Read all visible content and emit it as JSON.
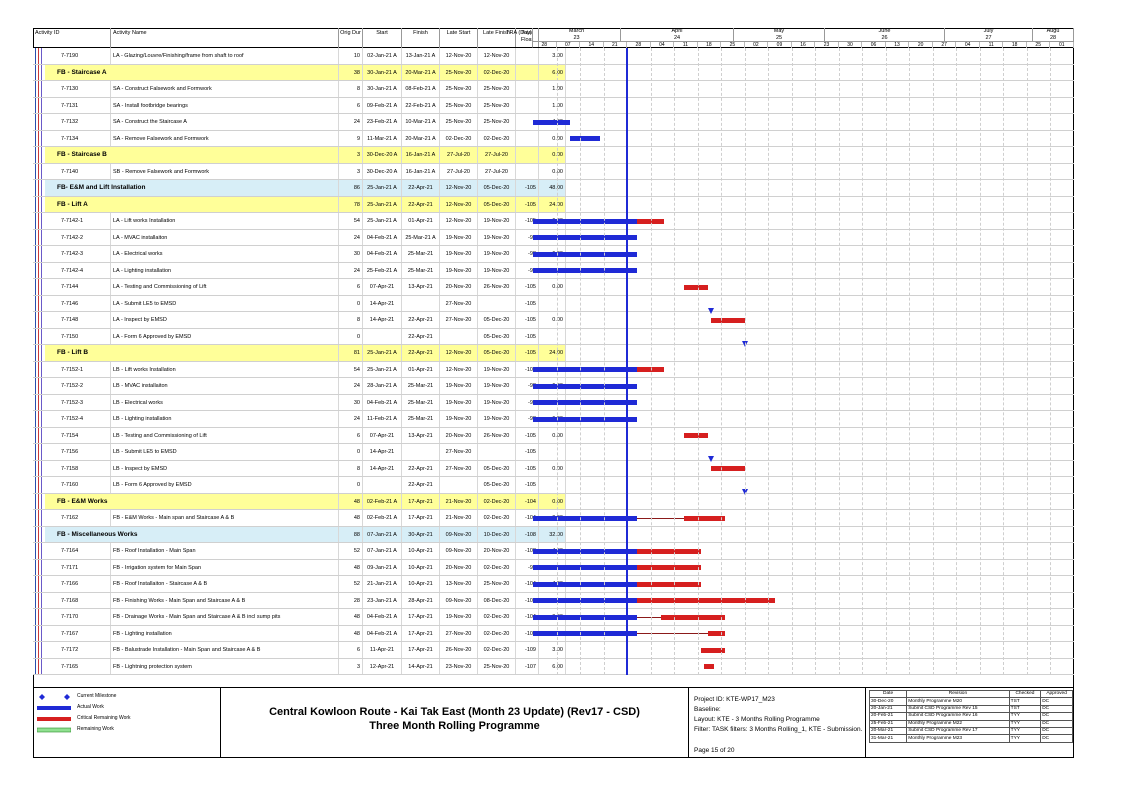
{
  "colors": {
    "wbs_yellow": "#ffff99",
    "wbs_blue": "#d7eef7",
    "actual_work": "#1f2ad6",
    "critical_remaining": "#d61f1f",
    "remaining_work": "#90e090",
    "milestone": "#1f2ad6",
    "data_date_line": "#1f2ad6"
  },
  "columns": {
    "activity_id": "Activity ID",
    "activity_name": "Activity Name",
    "orig_dur": "Orig Dur",
    "start": "Start",
    "finish": "Finish",
    "late_start": "Late Start",
    "late_finish": "Late Finish",
    "total_float": "Total Float",
    "tra": "TRA (Day)"
  },
  "timescale": {
    "months": [
      {
        "name": "March",
        "sub": "23"
      },
      {
        "name": "April",
        "sub": "24"
      },
      {
        "name": "May",
        "sub": "25"
      },
      {
        "name": "June",
        "sub": "26"
      },
      {
        "name": "July",
        "sub": "27"
      },
      {
        "name": "Augu",
        "sub": "28"
      }
    ],
    "weeks": [
      "28",
      "07",
      "14",
      "21",
      "28",
      "04",
      "11",
      "18",
      "25",
      "02",
      "09",
      "16",
      "23",
      "30",
      "06",
      "13",
      "20",
      "27",
      "04",
      "11",
      "18",
      "25",
      "01"
    ]
  },
  "rows": [
    {
      "type": "task",
      "id": "7-7190",
      "name": "LA - Glazing/Louvre/Finishing/frame from shaft to roof",
      "dur": "10",
      "start": "02-Jan-21 A",
      "finish": "13-Jan-21 A",
      "ls": "12-Nov-20",
      "lf": "12-Nov-20",
      "tf": "",
      "tra": "3.00",
      "bars": []
    },
    {
      "type": "wbs-yellow",
      "id": "",
      "name": "FB - Staircase A",
      "dur": "38",
      "start": "30-Jan-21 A",
      "finish": "20-Mar-21 A",
      "ls": "25-Nov-20",
      "lf": "02-Dec-20",
      "tf": "",
      "tra": "6.00",
      "bars": []
    },
    {
      "type": "task",
      "id": "7-7130",
      "name": "SA - Construct Falsework and Formwork",
      "dur": "8",
      "start": "30-Jan-21 A",
      "finish": "08-Feb-21 A",
      "ls": "25-Nov-20",
      "lf": "25-Nov-20",
      "tf": "",
      "tra": "1.00",
      "bars": []
    },
    {
      "type": "task",
      "id": "7-7131",
      "name": "SA - Install footbridge bearings",
      "dur": "6",
      "start": "09-Feb-21 A",
      "finish": "22-Feb-21 A",
      "ls": "25-Nov-20",
      "lf": "25-Nov-20",
      "tf": "",
      "tra": "1.00",
      "bars": []
    },
    {
      "type": "task",
      "id": "7-7132",
      "name": "SA - Construct the Staircase A",
      "dur": "24",
      "start": "23-Feb-21 A",
      "finish": "10-Mar-21 A",
      "ls": "25-Nov-20",
      "lf": "25-Nov-20",
      "tf": "",
      "tra": "4.00",
      "bars": [
        {
          "kind": "actual",
          "from": "2021-02-28",
          "to": "2021-03-11"
        }
      ]
    },
    {
      "type": "task",
      "id": "7-7134",
      "name": "SA - Remove Falsework and Formwork",
      "dur": "9",
      "start": "11-Mar-21 A",
      "finish": "20-Mar-21 A",
      "ls": "02-Dec-20",
      "lf": "02-Dec-20",
      "tf": "",
      "tra": "0.00",
      "bars": [
        {
          "kind": "actual",
          "from": "2021-03-11",
          "to": "2021-03-20"
        }
      ]
    },
    {
      "type": "wbs-yellow",
      "id": "",
      "name": "FB - Staircase B",
      "dur": "3",
      "start": "30-Dec-20 A",
      "finish": "16-Jan-21 A",
      "ls": "27-Jul-20",
      "lf": "27-Jul-20",
      "tf": "",
      "tra": "0.00",
      "bars": []
    },
    {
      "type": "task",
      "id": "7-7140",
      "name": "SB - Remove Falsework and Formwork",
      "dur": "3",
      "start": "30-Dec-20 A",
      "finish": "16-Jan-21 A",
      "ls": "27-Jul-20",
      "lf": "27-Jul-20",
      "tf": "",
      "tra": "0.00",
      "bars": []
    },
    {
      "type": "wbs-blue",
      "id": "",
      "name": "FB- E&M and Lift Installation",
      "dur": "86",
      "start": "25-Jan-21 A",
      "finish": "22-Apr-21",
      "ls": "12-Nov-20",
      "lf": "05-Dec-20",
      "tf": "-105",
      "tra": "48.00",
      "bars": []
    },
    {
      "type": "wbs-yellow",
      "id": "",
      "name": "FB - Lift A",
      "dur": "78",
      "start": "25-Jan-21 A",
      "finish": "22-Apr-21",
      "ls": "12-Nov-20",
      "lf": "05-Dec-20",
      "tf": "-105",
      "tra": "24.00",
      "bars": []
    },
    {
      "type": "task",
      "id": "7-7142-1",
      "name": "LA - Lift works Installation",
      "dur": "54",
      "start": "25-Jan-21 A",
      "finish": "01-Apr-21",
      "ls": "12-Nov-20",
      "lf": "19-Nov-20",
      "tf": "-105",
      "tra": "6.00",
      "bars": [
        {
          "kind": "actual",
          "from": "2021-02-28",
          "to": "2021-03-31"
        },
        {
          "kind": "critical",
          "from": "2021-03-31",
          "to": "2021-04-08"
        }
      ]
    },
    {
      "type": "task",
      "id": "7-7142-2",
      "name": "LA - MVAC installaiton",
      "dur": "24",
      "start": "04-Feb-21 A",
      "finish": "25-Mar-21 A",
      "ls": "19-Nov-20",
      "lf": "19-Nov-20",
      "tf": "-98",
      "tra": "6.00",
      "bars": [
        {
          "kind": "actual",
          "from": "2021-02-28",
          "to": "2021-03-31"
        }
      ]
    },
    {
      "type": "task",
      "id": "7-7142-3",
      "name": "LA - Electrical works",
      "dur": "30",
      "start": "04-Feb-21 A",
      "finish": "25-Mar-21",
      "ls": "19-Nov-20",
      "lf": "19-Nov-20",
      "tf": "-98",
      "tra": "6.00",
      "bars": [
        {
          "kind": "actual",
          "from": "2021-02-28",
          "to": "2021-03-31"
        }
      ]
    },
    {
      "type": "task",
      "id": "7-7142-4",
      "name": "LA - Lighting installation",
      "dur": "24",
      "start": "25-Feb-21 A",
      "finish": "25-Mar-21",
      "ls": "19-Nov-20",
      "lf": "19-Nov-20",
      "tf": "-98",
      "tra": "6.00",
      "bars": [
        {
          "kind": "actual",
          "from": "2021-02-28",
          "to": "2021-03-31"
        }
      ]
    },
    {
      "type": "task",
      "id": "7-7144",
      "name": "LA - Testing and Commissioning of Lift",
      "dur": "6",
      "start": "07-Apr-21",
      "finish": "13-Apr-21",
      "ls": "20-Nov-20",
      "lf": "26-Nov-20",
      "tf": "-105",
      "tra": "0.00",
      "bars": [
        {
          "kind": "critical",
          "from": "2021-04-14",
          "to": "2021-04-21"
        }
      ]
    },
    {
      "type": "task",
      "id": "7-7146",
      "name": "LA - Submit LE5 to EMSD",
      "dur": "0",
      "start": "14-Apr-21",
      "finish": "",
      "ls": "27-Nov-20",
      "lf": "",
      "tf": "-105",
      "tra": "",
      "bars": [
        {
          "kind": "milestone",
          "from": "2021-04-22",
          "to": "2021-04-22"
        }
      ]
    },
    {
      "type": "task",
      "id": "7-7148",
      "name": "LA - Inspect by EMSD",
      "dur": "8",
      "start": "14-Apr-21",
      "finish": "22-Apr-21",
      "ls": "27-Nov-20",
      "lf": "05-Dec-20",
      "tf": "-105",
      "tra": "0.00",
      "bars": [
        {
          "kind": "critical",
          "from": "2021-04-22",
          "to": "2021-05-02"
        }
      ]
    },
    {
      "type": "task",
      "id": "7-7150",
      "name": "LA - Form 6 Approved by EMSD",
      "dur": "0",
      "start": "",
      "finish": "22-Apr-21",
      "ls": "",
      "lf": "05-Dec-20",
      "tf": "-105",
      "tra": "",
      "bars": [
        {
          "kind": "milestone",
          "from": "2021-05-02",
          "to": "2021-05-02"
        }
      ]
    },
    {
      "type": "wbs-yellow",
      "id": "",
      "name": "FB - Lift B",
      "dur": "81",
      "start": "25-Jan-21 A",
      "finish": "22-Apr-21",
      "ls": "12-Nov-20",
      "lf": "05-Dec-20",
      "tf": "-105",
      "tra": "24.00",
      "bars": []
    },
    {
      "type": "task",
      "id": "7-7152-1",
      "name": "LB - Lift works Installation",
      "dur": "54",
      "start": "25-Jan-21 A",
      "finish": "01-Apr-21",
      "ls": "12-Nov-20",
      "lf": "19-Nov-20",
      "tf": "-105",
      "tra": "6.00",
      "bars": [
        {
          "kind": "actual",
          "from": "2021-02-28",
          "to": "2021-03-31"
        },
        {
          "kind": "critical",
          "from": "2021-03-31",
          "to": "2021-04-08"
        }
      ]
    },
    {
      "type": "task",
      "id": "7-7152-2",
      "name": "LB - MVAC installaiton",
      "dur": "24",
      "start": "28-Jan-21 A",
      "finish": "25-Mar-21",
      "ls": "19-Nov-20",
      "lf": "19-Nov-20",
      "tf": "-98",
      "tra": "6.00",
      "bars": [
        {
          "kind": "actual",
          "from": "2021-02-28",
          "to": "2021-03-31"
        }
      ]
    },
    {
      "type": "task",
      "id": "7-7152-3",
      "name": "LB - Electrical works",
      "dur": "30",
      "start": "04-Feb-21 A",
      "finish": "25-Mar-21",
      "ls": "19-Nov-20",
      "lf": "19-Nov-20",
      "tf": "-98",
      "tra": "6.00",
      "bars": [
        {
          "kind": "actual",
          "from": "2021-02-28",
          "to": "2021-03-31"
        }
      ]
    },
    {
      "type": "task",
      "id": "7-7152-4",
      "name": "LB - Lighting installation",
      "dur": "24",
      "start": "11-Feb-21 A",
      "finish": "25-Mar-21",
      "ls": "19-Nov-20",
      "lf": "19-Nov-20",
      "tf": "-98",
      "tra": "6.00",
      "bars": [
        {
          "kind": "actual",
          "from": "2021-02-28",
          "to": "2021-03-31"
        }
      ]
    },
    {
      "type": "task",
      "id": "7-7154",
      "name": "LB - Testing and Commissioning of Lift",
      "dur": "6",
      "start": "07-Apr-21",
      "finish": "13-Apr-21",
      "ls": "20-Nov-20",
      "lf": "26-Nov-20",
      "tf": "-105",
      "tra": "0.00",
      "bars": [
        {
          "kind": "critical",
          "from": "2021-04-14",
          "to": "2021-04-21"
        }
      ]
    },
    {
      "type": "task",
      "id": "7-7156",
      "name": "LB - Submit LE5 to EMSD",
      "dur": "0",
      "start": "14-Apr-21",
      "finish": "",
      "ls": "27-Nov-20",
      "lf": "",
      "tf": "-105",
      "tra": "",
      "bars": [
        {
          "kind": "milestone",
          "from": "2021-04-22",
          "to": "2021-04-22"
        }
      ]
    },
    {
      "type": "task",
      "id": "7-7158",
      "name": "LB - Inspect by EMSD",
      "dur": "8",
      "start": "14-Apr-21",
      "finish": "22-Apr-21",
      "ls": "27-Nov-20",
      "lf": "05-Dec-20",
      "tf": "-105",
      "tra": "0.00",
      "bars": [
        {
          "kind": "critical",
          "from": "2021-04-22",
          "to": "2021-05-02"
        }
      ]
    },
    {
      "type": "task",
      "id": "7-7160",
      "name": "LB - Form 6 Approved by EMSD",
      "dur": "0",
      "start": "",
      "finish": "22-Apr-21",
      "ls": "",
      "lf": "05-Dec-20",
      "tf": "-105",
      "tra": "",
      "bars": [
        {
          "kind": "milestone",
          "from": "2021-05-02",
          "to": "2021-05-02"
        }
      ]
    },
    {
      "type": "wbs-yellow",
      "id": "",
      "name": "FB - E&M Works",
      "dur": "48",
      "start": "02-Feb-21 A",
      "finish": "17-Apr-21",
      "ls": "21-Nov-20",
      "lf": "02-Dec-20",
      "tf": "-104",
      "tra": "0.00",
      "bars": []
    },
    {
      "type": "task",
      "id": "7-7162",
      "name": "FB - E&M Works - Main span and Staircase A & B",
      "dur": "48",
      "start": "02-Feb-21 A",
      "finish": "17-Apr-21",
      "ls": "21-Nov-20",
      "lf": "02-Dec-20",
      "tf": "-104",
      "tra": "0.00",
      "bars": [
        {
          "kind": "actual",
          "from": "2021-02-28",
          "to": "2021-03-31"
        },
        {
          "kind": "thin",
          "from": "2021-03-31",
          "to": "2021-04-14"
        },
        {
          "kind": "critical",
          "from": "2021-04-14",
          "to": "2021-04-26"
        }
      ]
    },
    {
      "type": "wbs-blue",
      "id": "",
      "name": "FB - Miscellaneous Works",
      "dur": "88",
      "start": "07-Jan-21 A",
      "finish": "30-Apr-21",
      "ls": "09-Nov-20",
      "lf": "10-Dec-20",
      "tf": "-108",
      "tra": "32.00",
      "bars": []
    },
    {
      "type": "task",
      "id": "7-7164",
      "name": "FB - Roof Installation - Main Span",
      "dur": "52",
      "start": "07-Jan-21 A",
      "finish": "10-Apr-21",
      "ls": "09-Nov-20",
      "lf": "20-Nov-20",
      "tf": "-108",
      "tra": "4.00",
      "bars": [
        {
          "kind": "actual",
          "from": "2021-02-28",
          "to": "2021-03-31"
        },
        {
          "kind": "critical",
          "from": "2021-03-31",
          "to": "2021-04-19"
        }
      ]
    },
    {
      "type": "task",
      "id": "7-7171",
      "name": "FB - Irrigation system for Main Span",
      "dur": "48",
      "start": "09-Jan-21 A",
      "finish": "10-Apr-21",
      "ls": "20-Nov-20",
      "lf": "02-Dec-20",
      "tf": "-98",
      "tra": "5.00",
      "bars": [
        {
          "kind": "actual",
          "from": "2021-02-28",
          "to": "2021-03-31"
        },
        {
          "kind": "critical",
          "from": "2021-03-31",
          "to": "2021-04-19"
        }
      ]
    },
    {
      "type": "task",
      "id": "7-7166",
      "name": "FB - Roof Installaiton - Staircase A & B",
      "dur": "52",
      "start": "21-Jan-21 A",
      "finish": "10-Apr-21",
      "ls": "13-Nov-20",
      "lf": "25-Nov-20",
      "tf": "-104",
      "tra": "4.00",
      "bars": [
        {
          "kind": "actual",
          "from": "2021-02-28",
          "to": "2021-03-31"
        },
        {
          "kind": "critical",
          "from": "2021-03-31",
          "to": "2021-04-19"
        }
      ]
    },
    {
      "type": "task",
      "id": "7-7168",
      "name": "FB - Finishing Works - Main Span and Staircase A & B",
      "dur": "28",
      "start": "23-Jan-21 A",
      "finish": "28-Apr-21",
      "ls": "09-Nov-20",
      "lf": "08-Dec-20",
      "tf": "-108",
      "tra": "4.00",
      "bars": [
        {
          "kind": "actual",
          "from": "2021-02-28",
          "to": "2021-03-31"
        },
        {
          "kind": "critical",
          "from": "2021-03-31",
          "to": "2021-05-11"
        }
      ]
    },
    {
      "type": "task",
      "id": "7-7170",
      "name": "FB - Drainage Works - Main Span and Staircase A & B incl sump pits",
      "dur": "48",
      "start": "04-Feb-21 A",
      "finish": "17-Apr-21",
      "ls": "19-Nov-20",
      "lf": "02-Dec-20",
      "tf": "-104",
      "tra": "0.00",
      "bars": [
        {
          "kind": "actual",
          "from": "2021-02-28",
          "to": "2021-03-31"
        },
        {
          "kind": "thin",
          "from": "2021-03-31",
          "to": "2021-04-07"
        },
        {
          "kind": "critical",
          "from": "2021-04-07",
          "to": "2021-04-26"
        }
      ]
    },
    {
      "type": "task",
      "id": "7-7167",
      "name": "FB - Lighting installation",
      "dur": "48",
      "start": "04-Feb-21 A",
      "finish": "17-Apr-21",
      "ls": "27-Nov-20",
      "lf": "02-Dec-20",
      "tf": "-104",
      "tra": "6.00",
      "bars": [
        {
          "kind": "actual",
          "from": "2021-02-28",
          "to": "2021-03-31"
        },
        {
          "kind": "thin",
          "from": "2021-03-31",
          "to": "2021-04-21"
        },
        {
          "kind": "critical",
          "from": "2021-04-21",
          "to": "2021-04-26"
        }
      ]
    },
    {
      "type": "task",
      "id": "7-7172",
      "name": "FB - Balustrade Installation - Main Span and Staircase A & B",
      "dur": "6",
      "start": "11-Apr-21",
      "finish": "17-Apr-21",
      "ls": "26-Nov-20",
      "lf": "02-Dec-20",
      "tf": "-109",
      "tra": "3.00",
      "bars": [
        {
          "kind": "critical",
          "from": "2021-04-19",
          "to": "2021-04-26"
        }
      ]
    },
    {
      "type": "task",
      "id": "7-7165",
      "name": "FB - Lightning protection system",
      "dur": "3",
      "start": "12-Apr-21",
      "finish": "14-Apr-21",
      "ls": "23-Nov-20",
      "lf": "25-Nov-20",
      "tf": "-107",
      "tra": "6.00",
      "bars": [
        {
          "kind": "critical",
          "from": "2021-04-20",
          "to": "2021-04-23"
        }
      ]
    }
  ],
  "legend": {
    "current_milestone": "Current Milestone",
    "actual_work": "Actual Work",
    "critical_remaining": "Critical Remaining Work",
    "remaining_work": "Remaining Work"
  },
  "title": {
    "line1": "Central Kowloon Route - Kai Tak East (Month 23 Update) (Rev17 - CSD)",
    "line2": "Three Month Rolling Programme"
  },
  "project": {
    "id": "Project ID: KTE-WP17_M23",
    "baseline": "Baseline:",
    "layout": "Layout: KTE - 3 Months Rolling Programme",
    "filter": "Filter: TASK filters: 3 Months Rolling_1, KTE - Submission.",
    "page": "Page 15 of 20"
  },
  "revisions": {
    "headers": [
      "Date",
      "Revision",
      "Checked",
      "Approved"
    ],
    "rows": [
      [
        "30-Dec-20",
        "Monthly Programme M20",
        "TST",
        "DC"
      ],
      [
        "20-Jan-21",
        "Submit CSD Programme Rev 15",
        "TST",
        "DC"
      ],
      [
        "20-Feb-21",
        "Submit CSD Programme Rev 16",
        "TYY",
        "DC"
      ],
      [
        "25-Feb-21",
        "Monthly Programme M22",
        "TYY",
        "DC"
      ],
      [
        "20-Mar-21",
        "Submit CSD Programme Rev 17",
        "TYY",
        "DC"
      ],
      [
        "31-Mar-21",
        "Monthly Programme M23",
        "TYY",
        "DC"
      ]
    ]
  }
}
